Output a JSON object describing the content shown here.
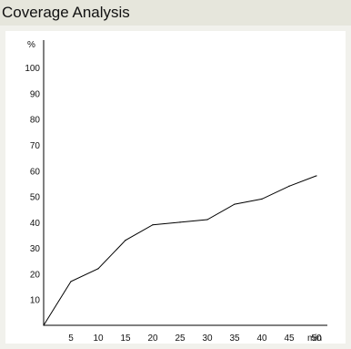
{
  "header": {
    "title": "Coverage Analysis"
  },
  "chart_data": {
    "type": "line",
    "title": "Coverage Analysis",
    "xlabel": "min",
    "ylabel": "%",
    "x": [
      0,
      5,
      10,
      15,
      20,
      25,
      30,
      35,
      40,
      45,
      50
    ],
    "series": [
      {
        "values": [
          0,
          17,
          22,
          33,
          39,
          40,
          41,
          47,
          49,
          54,
          58
        ]
      }
    ],
    "xticks": [
      "5",
      "10",
      "15",
      "20",
      "25",
      "30",
      "35",
      "40",
      "45",
      "50"
    ],
    "yticks": [
      "10",
      "20",
      "30",
      "40",
      "50",
      "60",
      "70",
      "80",
      "90",
      "100"
    ],
    "xlim": [
      0,
      52
    ],
    "ylim": [
      0,
      105
    ],
    "grid": false,
    "line_color": "#000000"
  }
}
